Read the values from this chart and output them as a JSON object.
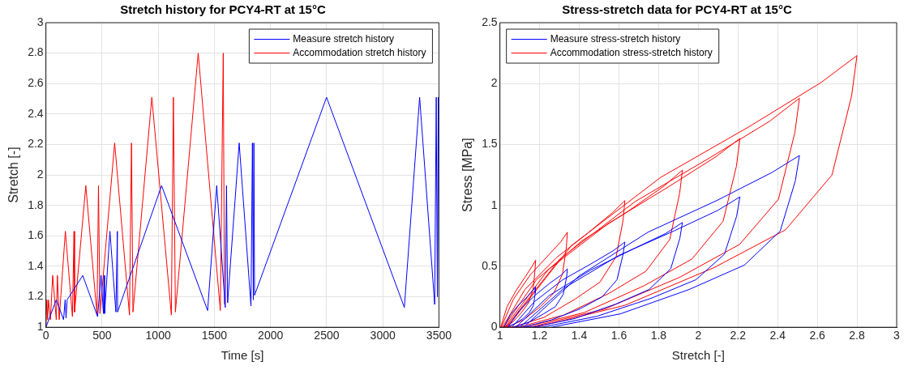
{
  "chart_data": [
    {
      "type": "line",
      "title": "Stretch history for PCY4-RT at 15°C",
      "xlabel": "Time [s]",
      "ylabel": "Stretch [-]",
      "xlim": [
        0,
        3500
      ],
      "xticks": [
        0,
        500,
        1000,
        1500,
        2000,
        2500,
        3000,
        3500
      ],
      "ylim": [
        1,
        3
      ],
      "yticks": [
        1,
        1.2,
        1.4,
        1.6,
        1.8,
        2,
        2.2,
        2.4,
        2.6,
        2.8,
        3
      ],
      "grid": true,
      "legend": "top right",
      "marker": "none",
      "line_style": "solid",
      "series": [
        {
          "name": "Measure stretch history",
          "color": "#0000ff",
          "x": [
            0,
            92,
            157,
            171,
            179,
            189,
            328,
            460,
            491,
            512,
            517,
            522,
            570,
            623,
            636,
            638,
            1030,
            1440,
            1521,
            1597,
            1608,
            1618,
            1721,
            1826,
            1839,
            1847,
            1852,
            1858,
            2499,
            3192,
            3328,
            3462,
            3476,
            3486,
            3494,
            3500
          ],
          "values": [
            1,
            1.18,
            1.05,
            1.18,
            1.06,
            1.18,
            1.34,
            1.07,
            1.34,
            1.09,
            1.34,
            1.09,
            1.63,
            1.1,
            1.63,
            1.1,
            1.93,
            1.11,
            1.93,
            1.13,
            1.93,
            1.16,
            2.21,
            1.14,
            2.21,
            1.18,
            2.21,
            1.21,
            2.51,
            1.13,
            2.51,
            1.15,
            2.51,
            1.2,
            2.51,
            1.2
          ]
        },
        {
          "name": "Accommodation stretch history",
          "color": "#ff0000",
          "x": [
            0,
            8,
            15,
            22,
            40,
            60,
            92,
            102,
            118,
            173,
            236,
            250,
            255,
            355,
            455,
            468,
            481,
            612,
            744,
            762,
            775,
            943,
            1117,
            1135,
            1153,
            1356,
            1553,
            1579,
            1590
          ],
          "values": [
            1,
            1.18,
            1.05,
            1.18,
            1.05,
            1.34,
            1.05,
            1.34,
            1.05,
            1.63,
            1.07,
            1.63,
            1.1,
            1.93,
            1.08,
            1.93,
            1.09,
            2.21,
            1.08,
            2.21,
            1.1,
            2.51,
            1.08,
            2.51,
            1.1,
            2.8,
            1.11,
            2.8,
            1.15
          ]
        }
      ]
    },
    {
      "type": "line",
      "title": "Stress-stretch data for PCY4-RT at 15°C",
      "xlabel": "Stretch [-]",
      "ylabel": "Stress [MPa]",
      "xlim": [
        1,
        3
      ],
      "xticks": [
        1,
        1.2,
        1.4,
        1.6,
        1.8,
        2,
        2.2,
        2.4,
        2.6,
        2.8,
        3
      ],
      "ylim": [
        0,
        2.5
      ],
      "yticks": [
        0,
        0.5,
        1,
        1.5,
        2,
        2.5
      ],
      "grid": true,
      "legend": "top left",
      "marker": "none",
      "line_style": "solid",
      "series": [
        {
          "name": "Measure stress-stretch history",
          "color": "#0000ff",
          "x": [
            1.02,
            1.052,
            1.092,
            1.132,
            1.164,
            1.18,
            1.178,
            1.169,
            1.148,
            1.116,
            1.076,
            1.036,
            1.04,
            1.1,
            1.175,
            1.25,
            1.31,
            1.34,
            1.336,
            1.319,
            1.28,
            1.22,
            1.145,
            1.07,
            1.06,
            1.174,
            1.317,
            1.459,
            1.573,
            1.63,
            1.621,
            1.59,
            1.516,
            1.402,
            1.26,
            1.117,
            1.08,
            1.248,
            1.458,
            1.668,
            1.836,
            1.92,
            1.907,
            1.861,
            1.752,
            1.584,
            1.374,
            1.164,
            1.1,
            1.322,
            1.6,
            1.877,
            2.099,
            2.21,
            2.193,
            2.132,
            1.988,
            1.766,
            1.489,
            1.211,
            1.12,
            1.398,
            1.746,
            2.093,
            2.371,
            2.51,
            2.489,
            2.413,
            2.232,
            1.954,
            1.607,
            1.259
          ],
          "values": [
            0,
            0.1,
            0.18,
            0.24,
            0.3,
            0.33,
            0.28,
            0.18,
            0.12,
            0.07,
            0.03,
            0,
            0,
            0.14,
            0.26,
            0.36,
            0.43,
            0.48,
            0.41,
            0.27,
            0.17,
            0.11,
            0.04,
            0,
            0,
            0.21,
            0.39,
            0.52,
            0.63,
            0.7,
            0.6,
            0.39,
            0.25,
            0.15,
            0.06,
            0,
            0,
            0.26,
            0.47,
            0.64,
            0.77,
            0.86,
            0.73,
            0.48,
            0.31,
            0.19,
            0.07,
            0,
            0,
            0.32,
            0.59,
            0.79,
            0.96,
            1.07,
            0.91,
            0.6,
            0.39,
            0.24,
            0.09,
            0,
            0,
            0.42,
            0.78,
            1.04,
            1.27,
            1.41,
            1.2,
            0.79,
            0.51,
            0.31,
            0.11,
            0
          ]
        },
        {
          "name": "Accommodation stress-stretch history",
          "color": "#ff0000",
          "x": [
            1.004,
            1.036,
            1.081,
            1.126,
            1.162,
            1.18,
            1.177,
            1.167,
            1.144,
            1.108,
            1.063,
            1.018,
            1.007,
            1.068,
            1.153,
            1.238,
            1.306,
            1.34,
            1.335,
            1.316,
            1.272,
            1.204,
            1.119,
            1.034,
            1.013,
            1.126,
            1.284,
            1.441,
            1.567,
            1.63,
            1.621,
            1.586,
            1.504,
            1.378,
            1.221,
            1.063,
            1.018,
            1.184,
            1.414,
            1.644,
            1.828,
            1.92,
            1.906,
            1.856,
            1.736,
            1.552,
            1.322,
            1.092,
            1.024,
            1.242,
            1.545,
            1.847,
            2.089,
            2.21,
            2.192,
            2.125,
            1.968,
            1.726,
            1.424,
            1.121,
            1.03,
            1.302,
            1.68,
            2.057,
            2.359,
            2.51,
            2.487,
            2.404,
            2.208,
            1.906,
            1.529,
            1.151,
            1.036,
            1.36,
            1.81,
            2.26,
            2.62,
            2.8,
            2.773,
            2.674,
            2.44,
            2.08,
            1.63,
            1.18
          ],
          "values": [
            0,
            0.17,
            0.3,
            0.41,
            0.5,
            0.55,
            0.47,
            0.31,
            0.2,
            0.12,
            0.04,
            0,
            0,
            0.23,
            0.43,
            0.58,
            0.7,
            0.78,
            0.66,
            0.44,
            0.28,
            0.17,
            0.06,
            0,
            0,
            0.31,
            0.57,
            0.77,
            0.94,
            1.04,
            0.88,
            0.58,
            0.37,
            0.23,
            0.08,
            0,
            0,
            0.39,
            0.71,
            0.95,
            1.16,
            1.29,
            1.1,
            0.72,
            0.46,
            0.28,
            0.1,
            0,
            0,
            0.47,
            0.85,
            1.15,
            1.4,
            1.55,
            1.32,
            0.87,
            0.56,
            0.34,
            0.12,
            0,
            0,
            0.56,
            1.03,
            1.39,
            1.69,
            1.88,
            1.6,
            1.05,
            0.68,
            0.41,
            0.15,
            0,
            0,
            0.67,
            1.23,
            1.65,
            2.01,
            2.23,
            1.9,
            1.25,
            0.8,
            0.49,
            0.18,
            0
          ]
        }
      ]
    }
  ]
}
